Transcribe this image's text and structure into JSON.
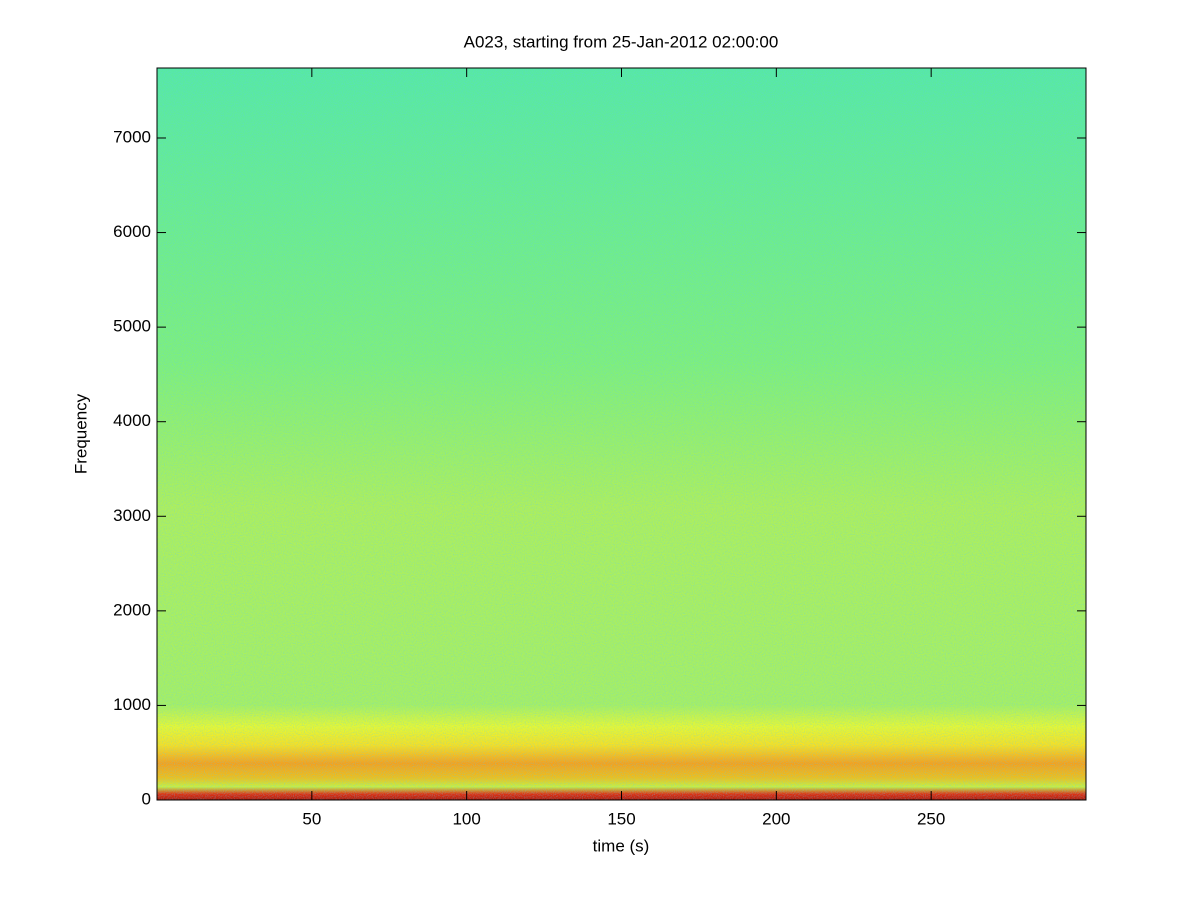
{
  "chart_data": {
    "type": "spectrogram",
    "title": "A023, starting from 25-Jan-2012 02:00:00",
    "xlabel": "time (s)",
    "ylabel": "Frequency",
    "xlim": [
      0,
      300
    ],
    "ylim": [
      0,
      7740
    ],
    "xticks": [
      50,
      100,
      150,
      200,
      250
    ],
    "yticks": [
      0,
      1000,
      2000,
      3000,
      4000,
      5000,
      6000,
      7000
    ],
    "grid": false
  }
}
